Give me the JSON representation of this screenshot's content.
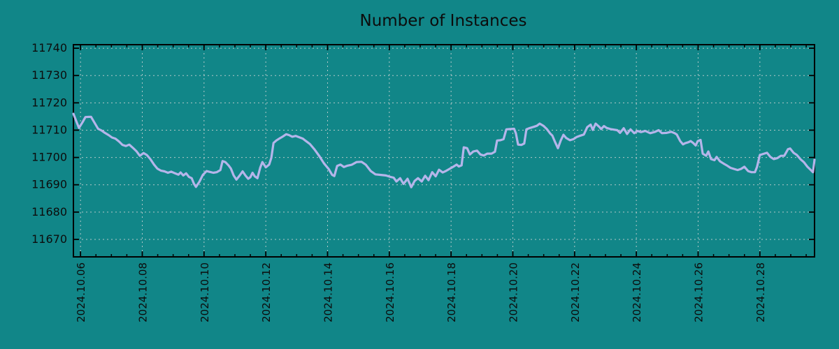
{
  "title": "Number of Instances",
  "colors": {
    "background": "#118688",
    "line": "#b5b5ea",
    "grid": "#cfd4d4",
    "axis": "#000000",
    "text": "#0c0c0c"
  },
  "chart_data": {
    "type": "line",
    "title": "Number of Instances",
    "xlabel": "",
    "ylabel": "",
    "legend": "none",
    "grid": "dashed",
    "x_axis": {
      "tick_labels": [
        "2024.10.06",
        "2024.10.08",
        "2024.10.10",
        "2024.10.12",
        "2024.10.14",
        "2024.10.16",
        "2024.10.18",
        "2024.10.20",
        "2024.10.22",
        "2024.10.24",
        "2024.10.26",
        "2024.10.28"
      ],
      "tick_positions_days": [
        0,
        2,
        4,
        6,
        8,
        10,
        12,
        14,
        16,
        18,
        20,
        22
      ],
      "minor_tick_interval_days": 0.5,
      "range_days": [
        -0.23,
        23.77
      ]
    },
    "y_axis": {
      "ticks": [
        11670,
        11680,
        11690,
        11700,
        11710,
        11720,
        11730,
        11740
      ],
      "range": [
        11663.6,
        11741.3
      ]
    },
    "series": [
      {
        "name": "instances",
        "points": [
          [
            -0.23,
            11716.0
          ],
          [
            -0.11,
            11712.5
          ],
          [
            -0.05,
            11710.8
          ],
          [
            0.07,
            11713.0
          ],
          [
            0.16,
            11714.8
          ],
          [
            0.34,
            11714.9
          ],
          [
            0.45,
            11712.8
          ],
          [
            0.57,
            11710.5
          ],
          [
            0.68,
            11709.9
          ],
          [
            0.79,
            11709.0
          ],
          [
            0.91,
            11708.2
          ],
          [
            1.02,
            11707.3
          ],
          [
            1.13,
            11706.9
          ],
          [
            1.25,
            11705.8
          ],
          [
            1.36,
            11704.6
          ],
          [
            1.47,
            11704.2
          ],
          [
            1.58,
            11704.7
          ],
          [
            1.7,
            11703.5
          ],
          [
            1.81,
            11702.3
          ],
          [
            1.92,
            11700.6
          ],
          [
            2.04,
            11701.6
          ],
          [
            2.15,
            11700.9
          ],
          [
            2.26,
            11699.4
          ],
          [
            2.38,
            11697.4
          ],
          [
            2.49,
            11695.9
          ],
          [
            2.6,
            11695.2
          ],
          [
            2.72,
            11694.9
          ],
          [
            2.83,
            11694.4
          ],
          [
            2.94,
            11694.8
          ],
          [
            3.06,
            11694.2
          ],
          [
            3.17,
            11693.7
          ],
          [
            3.24,
            11694.5
          ],
          [
            3.33,
            11693.4
          ],
          [
            3.42,
            11694.2
          ],
          [
            3.51,
            11692.9
          ],
          [
            3.6,
            11692.4
          ],
          [
            3.67,
            11690.4
          ],
          [
            3.74,
            11689.2
          ],
          [
            3.85,
            11691.1
          ],
          [
            3.96,
            11693.6
          ],
          [
            4.08,
            11695.0
          ],
          [
            4.19,
            11694.7
          ],
          [
            4.3,
            11694.4
          ],
          [
            4.41,
            11694.6
          ],
          [
            4.53,
            11695.4
          ],
          [
            4.6,
            11698.7
          ],
          [
            4.69,
            11698.3
          ],
          [
            4.8,
            11697.0
          ],
          [
            4.87,
            11695.9
          ],
          [
            4.96,
            11693.4
          ],
          [
            5.05,
            11691.9
          ],
          [
            5.16,
            11693.5
          ],
          [
            5.25,
            11694.9
          ],
          [
            5.34,
            11693.4
          ],
          [
            5.43,
            11692.2
          ],
          [
            5.5,
            11692.8
          ],
          [
            5.57,
            11694.4
          ],
          [
            5.64,
            11693.1
          ],
          [
            5.73,
            11692.4
          ],
          [
            5.82,
            11696.3
          ],
          [
            5.89,
            11698.3
          ],
          [
            6.0,
            11696.4
          ],
          [
            6.11,
            11697.4
          ],
          [
            6.18,
            11699.9
          ],
          [
            6.25,
            11705.3
          ],
          [
            6.34,
            11706.2
          ],
          [
            6.45,
            11707.0
          ],
          [
            6.57,
            11707.8
          ],
          [
            6.66,
            11708.5
          ],
          [
            6.75,
            11708.2
          ],
          [
            6.86,
            11707.6
          ],
          [
            6.97,
            11707.9
          ],
          [
            7.08,
            11707.4
          ],
          [
            7.2,
            11706.9
          ],
          [
            7.29,
            11706.1
          ],
          [
            7.43,
            11704.9
          ],
          [
            7.58,
            11702.9
          ],
          [
            7.74,
            11700.4
          ],
          [
            7.88,
            11697.9
          ],
          [
            8.04,
            11695.7
          ],
          [
            8.15,
            11693.6
          ],
          [
            8.22,
            11693.2
          ],
          [
            8.31,
            11696.9
          ],
          [
            8.42,
            11697.4
          ],
          [
            8.53,
            11696.5
          ],
          [
            8.65,
            11697.0
          ],
          [
            8.78,
            11697.3
          ],
          [
            8.94,
            11698.3
          ],
          [
            9.1,
            11698.4
          ],
          [
            9.24,
            11697.3
          ],
          [
            9.4,
            11695.0
          ],
          [
            9.55,
            11693.8
          ],
          [
            9.73,
            11693.6
          ],
          [
            9.89,
            11693.4
          ],
          [
            10.03,
            11692.9
          ],
          [
            10.14,
            11692.6
          ],
          [
            10.23,
            11691.2
          ],
          [
            10.35,
            11692.4
          ],
          [
            10.46,
            11690.3
          ],
          [
            10.59,
            11692.2
          ],
          [
            10.71,
            11689.1
          ],
          [
            10.82,
            11691.4
          ],
          [
            10.93,
            11692.4
          ],
          [
            11.05,
            11691.2
          ],
          [
            11.16,
            11693.3
          ],
          [
            11.27,
            11691.7
          ],
          [
            11.39,
            11694.6
          ],
          [
            11.5,
            11693.1
          ],
          [
            11.61,
            11695.5
          ],
          [
            11.73,
            11694.5
          ],
          [
            11.84,
            11695.1
          ],
          [
            11.95,
            11695.8
          ],
          [
            12.07,
            11696.6
          ],
          [
            12.18,
            11697.4
          ],
          [
            12.25,
            11696.7
          ],
          [
            12.34,
            11697.1
          ],
          [
            12.41,
            11703.7
          ],
          [
            12.52,
            11703.4
          ],
          [
            12.61,
            11701.1
          ],
          [
            12.72,
            11702.2
          ],
          [
            12.84,
            11702.5
          ],
          [
            12.95,
            11701.1
          ],
          [
            13.06,
            11700.7
          ],
          [
            13.17,
            11701.4
          ],
          [
            13.31,
            11701.4
          ],
          [
            13.42,
            11702.1
          ],
          [
            13.49,
            11706.2
          ],
          [
            13.6,
            11706.3
          ],
          [
            13.7,
            11706.7
          ],
          [
            13.79,
            11710.3
          ],
          [
            13.92,
            11710.4
          ],
          [
            14.04,
            11710.5
          ],
          [
            14.1,
            11708.8
          ],
          [
            14.17,
            11704.7
          ],
          [
            14.28,
            11704.6
          ],
          [
            14.37,
            11705.1
          ],
          [
            14.44,
            11710.3
          ],
          [
            14.56,
            11710.8
          ],
          [
            14.67,
            11711.2
          ],
          [
            14.78,
            11711.6
          ],
          [
            14.87,
            11712.4
          ],
          [
            14.99,
            11711.6
          ],
          [
            15.1,
            11710.4
          ],
          [
            15.21,
            11708.8
          ],
          [
            15.28,
            11708.0
          ],
          [
            15.37,
            11705.6
          ],
          [
            15.46,
            11703.4
          ],
          [
            15.55,
            11706.2
          ],
          [
            15.64,
            11708.3
          ],
          [
            15.73,
            11707.1
          ],
          [
            15.85,
            11706.3
          ],
          [
            15.96,
            11706.7
          ],
          [
            16.07,
            11707.5
          ],
          [
            16.19,
            11708.0
          ],
          [
            16.3,
            11708.4
          ],
          [
            16.41,
            11711.1
          ],
          [
            16.52,
            11712.0
          ],
          [
            16.59,
            11710.1
          ],
          [
            16.68,
            11712.4
          ],
          [
            16.8,
            11711.2
          ],
          [
            16.86,
            11710.4
          ],
          [
            16.95,
            11711.5
          ],
          [
            17.04,
            11710.8
          ],
          [
            17.16,
            11710.4
          ],
          [
            17.27,
            11710.2
          ],
          [
            17.38,
            11710.0
          ],
          [
            17.47,
            11709.0
          ],
          [
            17.59,
            11710.7
          ],
          [
            17.7,
            11708.6
          ],
          [
            17.81,
            11710.3
          ],
          [
            17.93,
            11708.9
          ],
          [
            18.04,
            11709.7
          ],
          [
            18.15,
            11709.3
          ],
          [
            18.29,
            11709.7
          ],
          [
            18.45,
            11708.9
          ],
          [
            18.61,
            11709.4
          ],
          [
            18.72,
            11710.0
          ],
          [
            18.83,
            11708.9
          ],
          [
            18.97,
            11709.0
          ],
          [
            19.13,
            11709.4
          ],
          [
            19.24,
            11708.9
          ],
          [
            19.31,
            11708.4
          ],
          [
            19.42,
            11706.0
          ],
          [
            19.51,
            11704.8
          ],
          [
            19.58,
            11705.2
          ],
          [
            19.69,
            11705.6
          ],
          [
            19.76,
            11706.0
          ],
          [
            19.85,
            11705.2
          ],
          [
            19.92,
            11704.4
          ],
          [
            19.99,
            11706.0
          ],
          [
            20.08,
            11706.4
          ],
          [
            20.15,
            11701.4
          ],
          [
            20.26,
            11700.6
          ],
          [
            20.33,
            11702.2
          ],
          [
            20.42,
            11699.4
          ],
          [
            20.53,
            11699.0
          ],
          [
            20.6,
            11700.2
          ],
          [
            20.71,
            11698.6
          ],
          [
            20.82,
            11697.8
          ],
          [
            20.94,
            11697.0
          ],
          [
            21.05,
            11696.2
          ],
          [
            21.16,
            11695.8
          ],
          [
            21.28,
            11695.4
          ],
          [
            21.39,
            11695.8
          ],
          [
            21.5,
            11696.6
          ],
          [
            21.62,
            11695.0
          ],
          [
            21.73,
            11694.6
          ],
          [
            21.84,
            11694.6
          ],
          [
            21.91,
            11696.6
          ],
          [
            22.0,
            11700.9
          ],
          [
            22.11,
            11701.3
          ],
          [
            22.23,
            11701.7
          ],
          [
            22.34,
            11700.2
          ],
          [
            22.45,
            11699.4
          ],
          [
            22.57,
            11699.8
          ],
          [
            22.68,
            11700.6
          ],
          [
            22.79,
            11700.6
          ],
          [
            22.91,
            11703.0
          ],
          [
            22.98,
            11703.3
          ],
          [
            23.09,
            11701.7
          ],
          [
            23.2,
            11700.9
          ],
          [
            23.31,
            11699.4
          ],
          [
            23.43,
            11698.2
          ],
          [
            23.54,
            11696.6
          ],
          [
            23.65,
            11695.4
          ],
          [
            23.72,
            11694.6
          ],
          [
            23.77,
            11699.2
          ]
        ]
      }
    ]
  }
}
